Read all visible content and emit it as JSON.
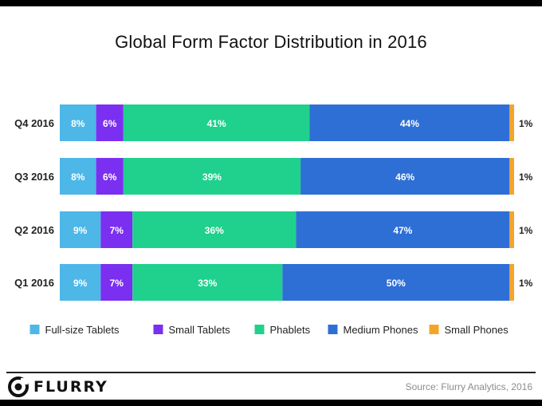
{
  "chart_data": {
    "type": "bar",
    "orientation": "horizontal",
    "stacked": true,
    "title": "Global Form Factor Distribution in 2016",
    "categories": [
      "Q4 2016",
      "Q3 2016",
      "Q2 2016",
      "Q1 2016"
    ],
    "series": [
      {
        "name": "Full-size Tablets",
        "color": "#4db7e8",
        "values": [
          8,
          8,
          9,
          9
        ]
      },
      {
        "name": "Small Tablets",
        "color": "#7b2ff0",
        "values": [
          6,
          6,
          7,
          7
        ]
      },
      {
        "name": "Phablets",
        "color": "#1fd18c",
        "values": [
          41,
          39,
          36,
          33
        ]
      },
      {
        "name": "Medium Phones",
        "color": "#2e6fd6",
        "values": [
          44,
          46,
          47,
          50
        ]
      },
      {
        "name": "Small Phones",
        "color": "#f5a42a",
        "values": [
          1,
          1,
          1,
          1
        ]
      }
    ],
    "value_suffix": "%",
    "legend_position": "bottom",
    "xlim": [
      0,
      100
    ],
    "grid": false
  },
  "footer": {
    "brand": "FLURRY",
    "source": "Source: Flurry Analytics, 2016"
  }
}
